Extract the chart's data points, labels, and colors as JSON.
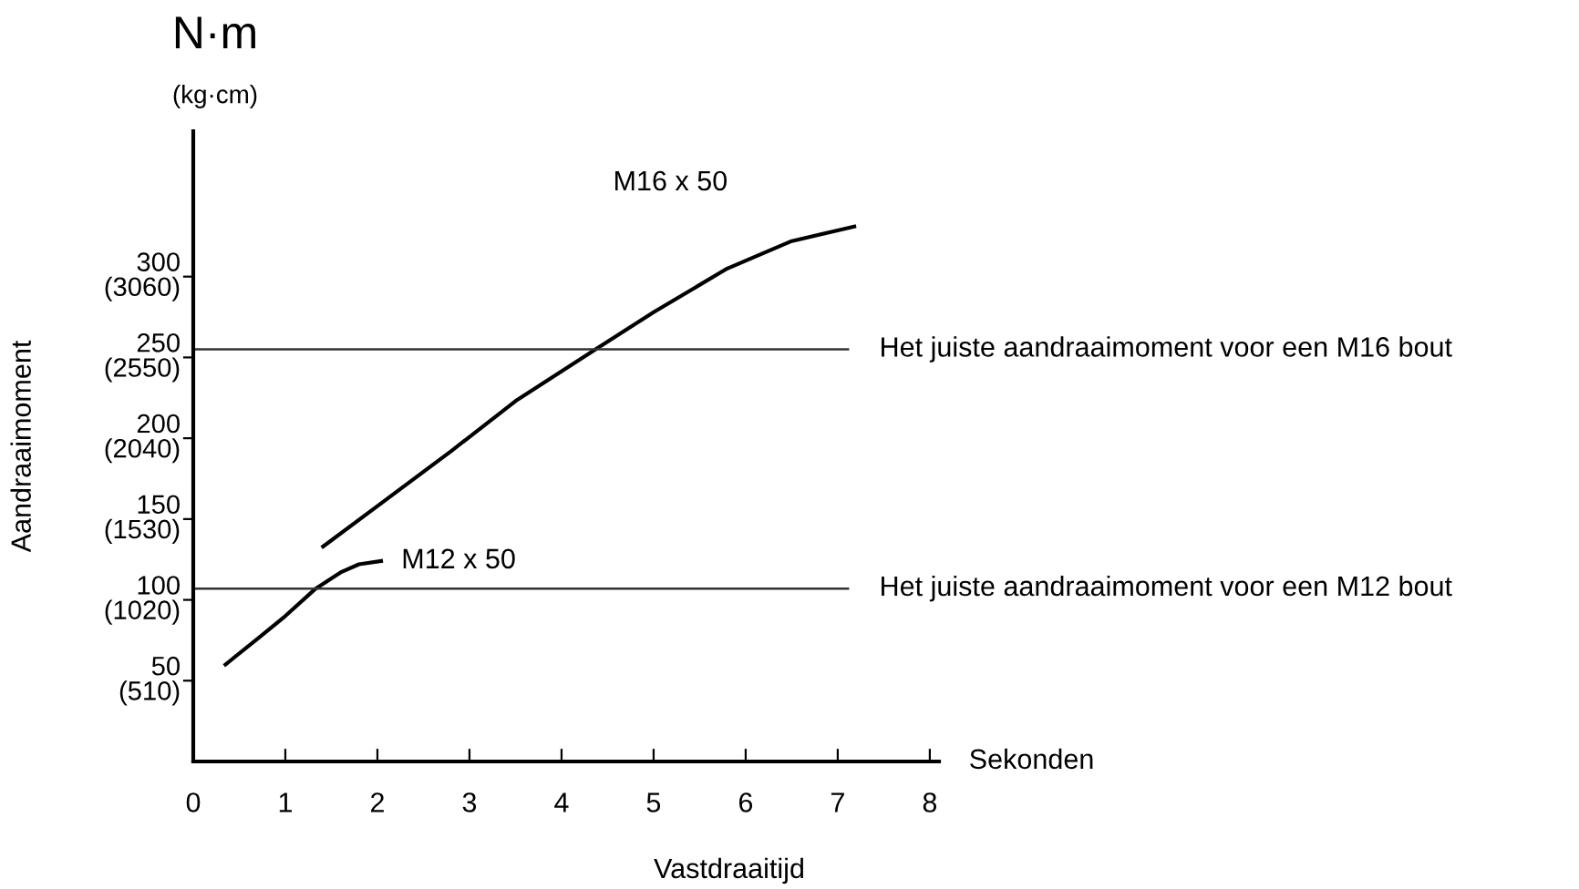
{
  "chart_data": {
    "type": "line",
    "title": "N·m",
    "subtitle": "(kg·cm)",
    "xlabel": "Vastdraaitijd",
    "y2label": "Aandraaimoment",
    "annotations": [
      "Sekonden"
    ],
    "xlim": [
      0,
      8.1
    ],
    "xticks": [
      0,
      1,
      2,
      3,
      4,
      5,
      6,
      7,
      8
    ],
    "ylim": [
      0,
      390
    ],
    "yticks": [
      50,
      100,
      150,
      200,
      250,
      300
    ],
    "y2lim": [
      0,
      3978
    ],
    "y2ticks": [
      {
        "value": 510,
        "label": "(510)"
      },
      {
        "value": 1020,
        "label": "(1020)"
      },
      {
        "value": 1530,
        "label": "(1530)"
      },
      {
        "value": 2040,
        "label": "(2040)"
      },
      {
        "value": 2550,
        "label": "(2550)"
      },
      {
        "value": 3060,
        "label": "(3060)"
      }
    ],
    "series": [
      {
        "name": "M12 x 50",
        "color": "#000000",
        "x": [
          0.35,
          0.7,
          1.0,
          1.33,
          1.6,
          1.8,
          2.04
        ],
        "values": [
          60,
          76,
          90,
          107,
          117,
          122,
          124
        ]
      },
      {
        "name": "M16 x 50",
        "color": "#000000",
        "x": [
          1.41,
          2.0,
          2.8,
          3.5,
          4.37,
          5.0,
          5.8,
          6.5,
          7.18
        ],
        "values": [
          133,
          158,
          192,
          223,
          255,
          278,
          305,
          322,
          331
        ]
      }
    ],
    "ref_lines": [
      {
        "axis": "y",
        "value": 255,
        "label": "Het juiste aandraaimoment voor een M16 bout",
        "color": "#333333"
      },
      {
        "axis": "y",
        "value": 107,
        "label": "Het juiste aandraaimoment voor een M12 bout",
        "color": "#333333"
      }
    ],
    "grid": false,
    "legend": false,
    "marker": "none",
    "line_style": "solid"
  }
}
